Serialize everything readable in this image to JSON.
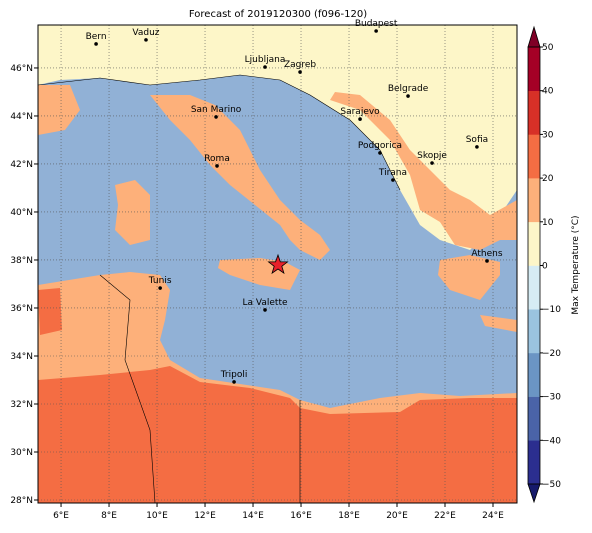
{
  "chart_data": {
    "type": "map",
    "title": "Forecast of 2019120300 (f096-120)",
    "lon_range": [
      5.04,
      25
    ],
    "lat_range": [
      27.875,
      47.79
    ],
    "lon_ticks": [
      {
        "value": 6,
        "label": "6°E"
      },
      {
        "value": 8,
        "label": "8°E"
      },
      {
        "value": 10,
        "label": "10°E"
      },
      {
        "value": 12,
        "label": "12°E"
      },
      {
        "value": 14,
        "label": "14°E"
      },
      {
        "value": 16,
        "label": "16°E"
      },
      {
        "value": 18,
        "label": "18°E"
      },
      {
        "value": 20,
        "label": "20°E"
      },
      {
        "value": 22,
        "label": "22°E"
      },
      {
        "value": 24,
        "label": "24°E"
      }
    ],
    "lat_ticks": [
      {
        "value": 28,
        "label": "28°N"
      },
      {
        "value": 30,
        "label": "30°N"
      },
      {
        "value": 32,
        "label": "32°N"
      },
      {
        "value": 34,
        "label": "34°N"
      },
      {
        "value": 36,
        "label": "36°N"
      },
      {
        "value": 38,
        "label": "38°N"
      },
      {
        "value": 40,
        "label": "40°N"
      },
      {
        "value": 42,
        "label": "42°N"
      },
      {
        "value": 44,
        "label": "44°N"
      },
      {
        "value": 46,
        "label": "46°N"
      }
    ],
    "grid": true,
    "cities": [
      {
        "name": "Bern",
        "lon": 7.46,
        "lat": 47.0
      },
      {
        "name": "Vaduz",
        "lon": 9.54,
        "lat": 47.17
      },
      {
        "name": "Budapest",
        "lon": 19.13,
        "lat": 47.54
      },
      {
        "name": "Ljubljana",
        "lon": 14.5,
        "lat": 46.04
      },
      {
        "name": "Zagreb",
        "lon": 15.96,
        "lat": 45.83
      },
      {
        "name": "Belgrade",
        "lon": 20.46,
        "lat": 44.83
      },
      {
        "name": "Sarajevo",
        "lon": 18.46,
        "lat": 43.87
      },
      {
        "name": "San Marino",
        "lon": 12.46,
        "lat": 43.96
      },
      {
        "name": "Roma",
        "lon": 12.5,
        "lat": 41.92
      },
      {
        "name": "Podgorica",
        "lon": 19.29,
        "lat": 42.46
      },
      {
        "name": "Skopje",
        "lon": 21.46,
        "lat": 42.04
      },
      {
        "name": "Sofia",
        "lon": 23.33,
        "lat": 42.71
      },
      {
        "name": "Tirana",
        "lon": 19.83,
        "lat": 41.33
      },
      {
        "name": "Athens",
        "lon": 23.75,
        "lat": 37.96
      },
      {
        "name": "Tunis",
        "lon": 10.13,
        "lat": 36.83
      },
      {
        "name": "La Valette",
        "lon": 14.5,
        "lat": 35.92
      },
      {
        "name": "Tripoli",
        "lon": 13.21,
        "lat": 32.92
      }
    ],
    "marker": {
      "lon": 15.04,
      "lat": 37.79,
      "color": "#e8202a"
    },
    "colorbar": {
      "label": "Max Temperature (°C)",
      "lim": [
        -50,
        50
      ],
      "ticks": [
        {
          "value": -50,
          "label": "−50"
        },
        {
          "value": -40,
          "label": "−40"
        },
        {
          "value": -30,
          "label": "−30"
        },
        {
          "value": -20,
          "label": "−20"
        },
        {
          "value": -10,
          "label": "−10"
        },
        0,
        10,
        20,
        30,
        40,
        50
      ],
      "colors": [
        "#2b2e8f",
        "#4a63a8",
        "#6b95c4",
        "#9ac3df",
        "#d6ecf4",
        "#fdf6c8",
        "#fdb07a",
        "#f46d43",
        "#d73027",
        "#a50026"
      ],
      "under_color": "#161a6b",
      "over_color": "#7f0026"
    }
  }
}
